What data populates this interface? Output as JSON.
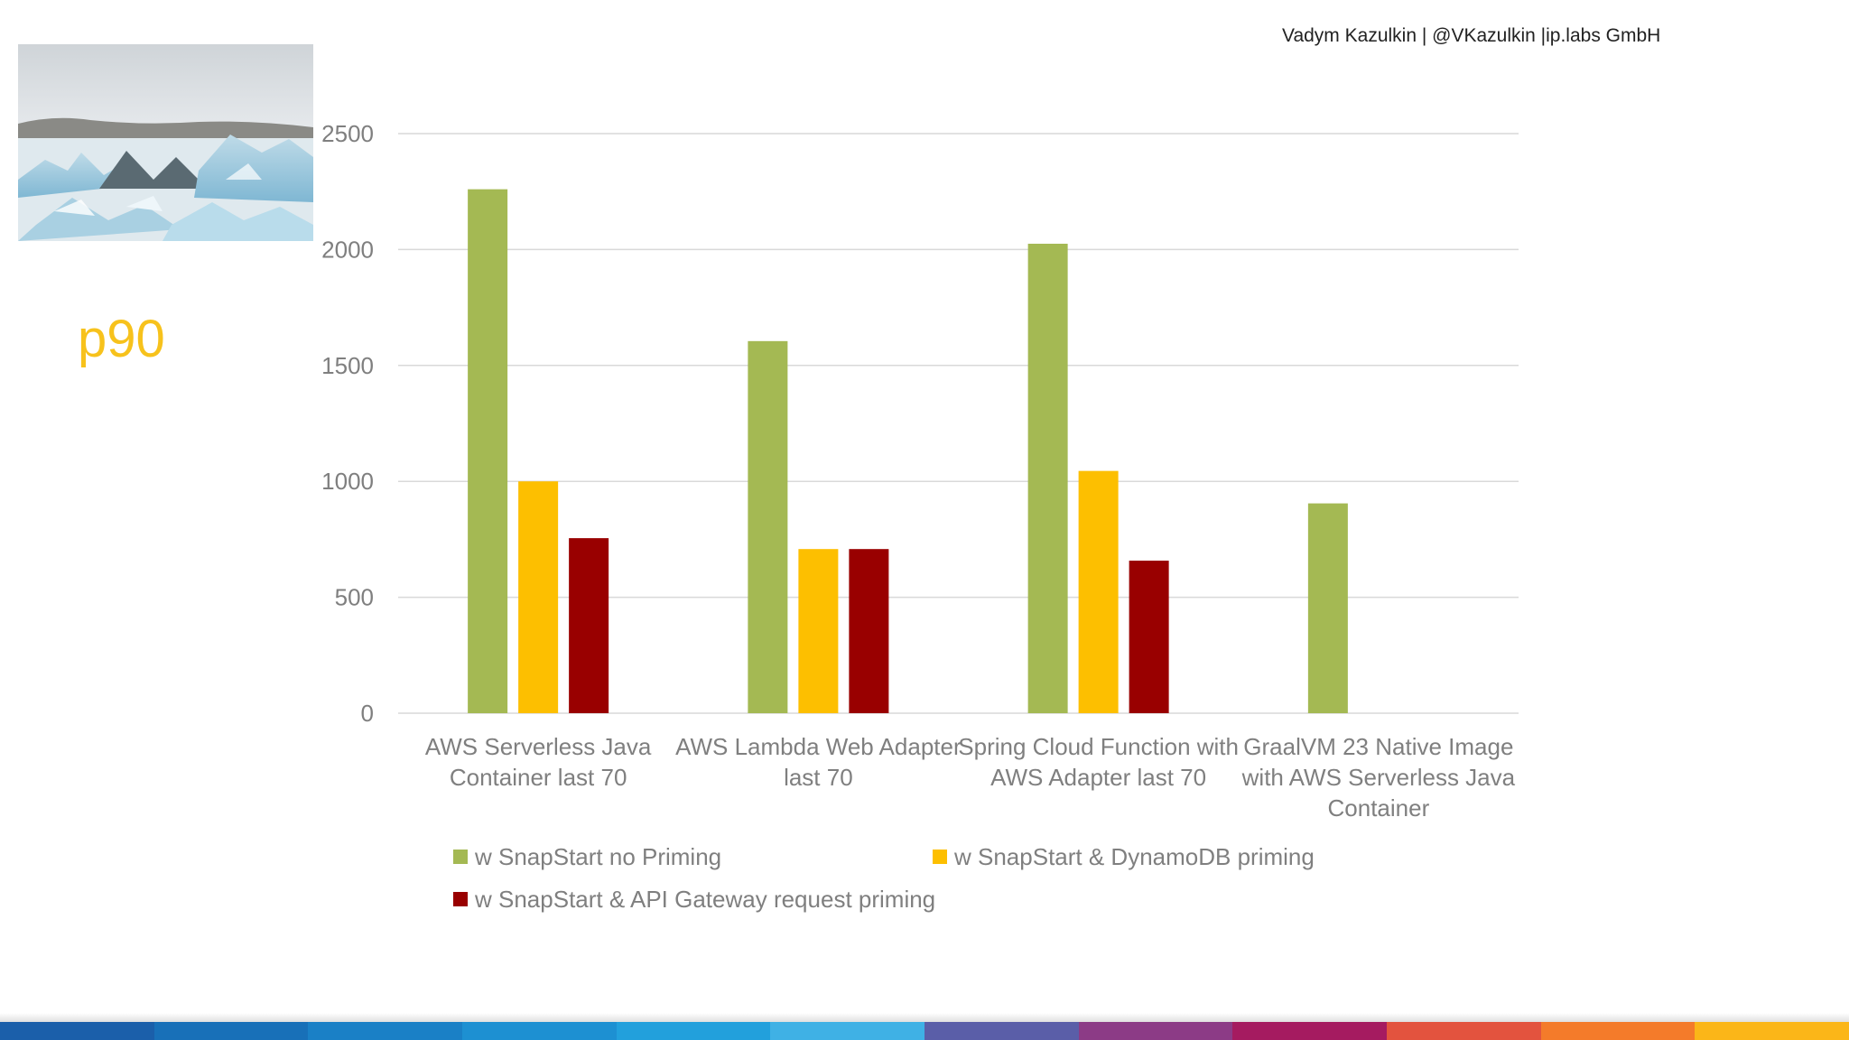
{
  "header": {
    "credit": "Vadym Kazulkin | @VKazulkin |ip.labs GmbH"
  },
  "slide": {
    "title": "p90",
    "photo_icon": "icebergs-photo"
  },
  "colors": {
    "green": "#a4b953",
    "yellow": "#fdbf00",
    "red": "#990000",
    "grid": "#d9d9d9",
    "axis_text": "#7f7f7f",
    "title": "#f7c21c",
    "bar_segments": [
      "#1b5faa",
      "#1870b8",
      "#1a80c6",
      "#1d90d2",
      "#22a0dc",
      "#3fb1e5",
      "#5a5ea8",
      "#8c3b86",
      "#a51b60",
      "#e3533e",
      "#f47b2a",
      "#fbb618"
    ]
  },
  "chart_data": {
    "type": "bar",
    "title": "",
    "xlabel": "",
    "ylabel": "",
    "ylim": [
      0,
      2500
    ],
    "yticks": [
      0,
      500,
      1000,
      1500,
      2000,
      2500
    ],
    "grid": true,
    "legend_position": "bottom",
    "categories": [
      [
        "AWS Serverless Java",
        "Container last 70"
      ],
      [
        "AWS Lambda Web Adapter",
        "last 70"
      ],
      [
        "Spring Cloud Function with",
        "AWS Adapter last 70"
      ],
      [
        "GraalVM 23 Native Image",
        "with AWS Serverless Java",
        "Container"
      ]
    ],
    "series": [
      {
        "name": "w SnapStart no Priming",
        "color": "#a4b953",
        "values": [
          2260,
          1605,
          2025,
          905
        ]
      },
      {
        "name": "w SnapStart & DynamoDB priming",
        "color": "#fdbf00",
        "values": [
          1000,
          708,
          1045,
          null
        ]
      },
      {
        "name": "w SnapStart & API Gateway request priming",
        "color": "#990000",
        "values": [
          755,
          708,
          658,
          null
        ]
      }
    ]
  }
}
